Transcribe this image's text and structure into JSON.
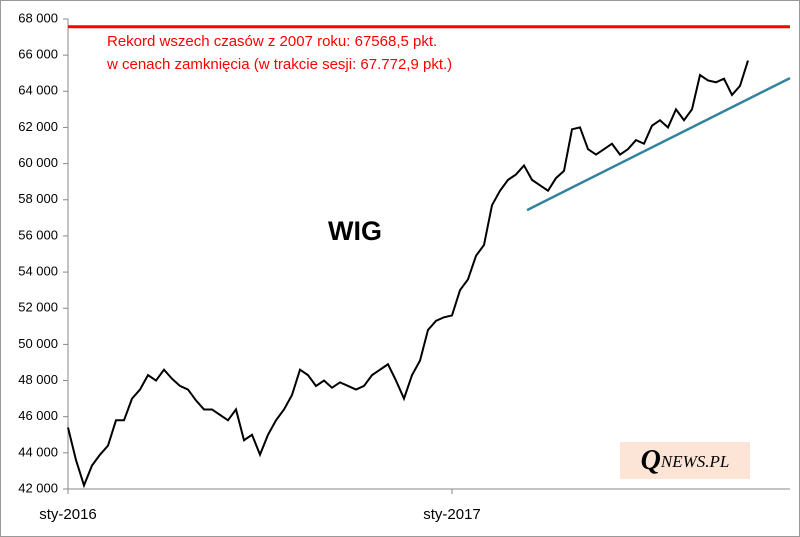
{
  "chart_data": {
    "type": "line",
    "title": "WIG",
    "categories": [
      "sty-2016",
      null,
      null,
      null,
      null,
      null,
      null,
      null,
      null,
      null,
      null,
      null,
      null,
      null,
      null,
      null,
      null,
      null,
      null,
      null,
      null,
      null,
      null,
      null,
      null,
      null,
      null,
      null,
      null,
      null,
      null,
      null,
      null,
      null,
      null,
      null,
      null,
      null,
      null,
      null,
      null,
      null,
      null,
      null,
      null,
      null,
      null,
      null,
      "sty-2017",
      null,
      null,
      null,
      null,
      null,
      null,
      null,
      null,
      null,
      null,
      null,
      null,
      null,
      null,
      null,
      null,
      null,
      null,
      null,
      null,
      null,
      null,
      null,
      null,
      null,
      null,
      null,
      null,
      null,
      null,
      null,
      null,
      null,
      null,
      null,
      null,
      null
    ],
    "values": [
      45400,
      43600,
      42200,
      43300,
      43900,
      44400,
      45800,
      45800,
      47000,
      47500,
      48300,
      48000,
      48600,
      48100,
      47700,
      47500,
      46900,
      46400,
      46400,
      46100,
      45800,
      46400,
      44700,
      45000,
      43900,
      45000,
      45800,
      46400,
      47200,
      48600,
      48300,
      47700,
      48000,
      47600,
      47900,
      47700,
      47500,
      47700,
      48300,
      48600,
      48900,
      48000,
      47000,
      48300,
      49100,
      50800,
      51300,
      51500,
      51600,
      53000,
      53600,
      54900,
      55500,
      57700,
      58500,
      59100,
      59400,
      59900,
      59100,
      58800,
      58500,
      59200,
      59600,
      61900,
      62000,
      60800,
      60500,
      60800,
      61100,
      60500,
      60800,
      61300,
      61100,
      62100,
      62400,
      62000,
      63000,
      62400,
      63000,
      64900,
      64600,
      64500,
      64700,
      63800,
      64300,
      65700
    ],
    "color": "#000000",
    "ylim": [
      42000,
      68000
    ],
    "yticks": [
      {
        "value": 42000,
        "label": "42 000"
      },
      {
        "value": 44000,
        "label": "44 000"
      },
      {
        "value": 46000,
        "label": "46 000"
      },
      {
        "value": 48000,
        "label": "48 000"
      },
      {
        "value": 50000,
        "label": "50 000"
      },
      {
        "value": 52000,
        "label": "52 000"
      },
      {
        "value": 54000,
        "label": "54 000"
      },
      {
        "value": 56000,
        "label": "56 000"
      },
      {
        "value": 58000,
        "label": "58 000"
      },
      {
        "value": 60000,
        "label": "60 000"
      },
      {
        "value": 62000,
        "label": "62 000"
      },
      {
        "value": 64000,
        "label": "64 000"
      },
      {
        "value": 66000,
        "label": "66 000"
      },
      {
        "value": 68000,
        "label": "68 000"
      }
    ],
    "reference_line": {
      "value": 67568.5,
      "color": "#ff0000"
    },
    "trendline": {
      "values": [
        57430,
        64730
      ],
      "color": "#31849b"
    },
    "annotations": [
      "Rekord wszech czasów z 2007 roku: 67568,5 pkt.",
      "w cenach zamknięcia (w trakcie sesji: 67.772,9 pkt.)"
    ],
    "logo": [
      "Q",
      "NEWS",
      ".PL"
    ]
  }
}
